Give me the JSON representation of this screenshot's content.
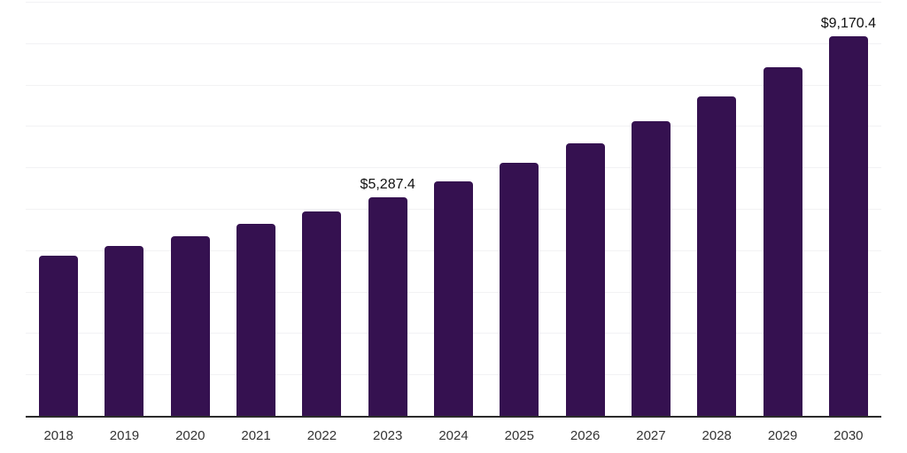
{
  "chart_data": {
    "type": "bar",
    "title": "",
    "xlabel": "",
    "ylabel": "",
    "categories": [
      "2018",
      "2019",
      "2020",
      "2021",
      "2022",
      "2023",
      "2024",
      "2025",
      "2026",
      "2027",
      "2028",
      "2029",
      "2030"
    ],
    "values": [
      3860,
      4105,
      4345,
      4630,
      4935,
      5287.4,
      5665,
      6110,
      6585,
      7120,
      7715,
      8415,
      9170.4
    ],
    "data_labels": [
      {
        "category": "2023",
        "text": "$5,287.4"
      },
      {
        "category": "2030",
        "text": "$9,170.4"
      }
    ],
    "ylim": [
      0,
      10000
    ],
    "gridline_step": 1000,
    "grid": true,
    "legend": "none",
    "colors": {
      "bar": "#351150",
      "gridline": "#f2f2f4",
      "axis": "#2b2b2b",
      "tick_label": "#333333",
      "data_label": "#111111",
      "background": "#ffffff"
    }
  }
}
